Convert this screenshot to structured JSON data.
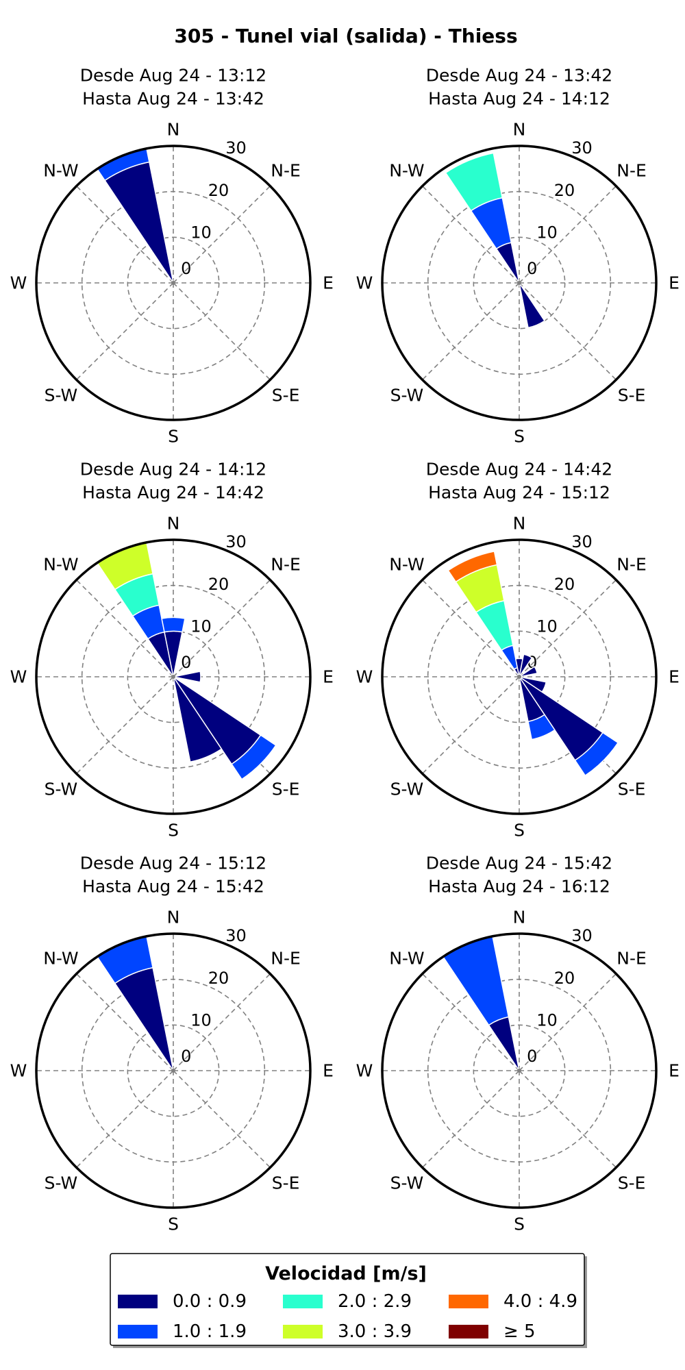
{
  "figure": {
    "title": "305 - Tunel vial (salida) - Thiess"
  },
  "colors": {
    "bins": [
      "#00007f",
      "#0045ff",
      "#29ffce",
      "#ceff29",
      "#ff6800",
      "#7f0000"
    ],
    "grid": "#808080",
    "frame": "#000000"
  },
  "legend": {
    "title": "Velocidad [m/s]",
    "entries": [
      "0.0 : 0.9",
      "1.0 : 1.9",
      "2.0 : 2.9",
      "3.0 : 3.9",
      "4.0 : 4.9",
      "≥ 5"
    ],
    "placement": "bottom-center"
  },
  "chart_data": [
    {
      "type": "windrose",
      "title_line1": "Desde Aug 24 - 13:12",
      "title_line2": "Hasta Aug 24 - 13:42",
      "direction_labels": [
        "N",
        "N-E",
        "E",
        "S-E",
        "S",
        "S-W",
        "W",
        "N-W"
      ],
      "radial_ticks": [
        "0",
        "10",
        "20",
        "30"
      ],
      "rmax": 30,
      "grid": true,
      "sectors": [
        {
          "direction": 337.5,
          "segments": [
            27,
            3
          ]
        }
      ]
    },
    {
      "type": "windrose",
      "title_line1": "Desde Aug 24 - 13:42",
      "title_line2": "Hasta Aug 24 - 14:12",
      "direction_labels": [
        "N",
        "N-E",
        "E",
        "S-E",
        "S",
        "S-W",
        "W",
        "N-W"
      ],
      "radial_ticks": [
        "0",
        "10",
        "20",
        "30"
      ],
      "rmax": 30,
      "grid": true,
      "sectors": [
        {
          "direction": 337.5,
          "segments": [
            9,
            10,
            10
          ]
        },
        {
          "direction": 157.5,
          "segments": [
            10
          ]
        }
      ]
    },
    {
      "type": "windrose",
      "title_line1": "Desde Aug 24 - 14:12",
      "title_line2": "Hasta Aug 24 - 14:42",
      "direction_labels": [
        "N",
        "N-E",
        "E",
        "S-E",
        "S",
        "S-W",
        "W",
        "N-W"
      ],
      "radial_ticks": [
        "0",
        "10",
        "20",
        "30"
      ],
      "rmax": 30,
      "grid": true,
      "sectors": [
        {
          "direction": 337.5,
          "segments": [
            10,
            6,
            7,
            7
          ]
        },
        {
          "direction": 0,
          "segments": [
            10,
            3
          ]
        },
        {
          "direction": 90,
          "segments": [
            6
          ]
        },
        {
          "direction": 135,
          "segments": [
            23,
            4
          ]
        },
        {
          "direction": 157.5,
          "segments": [
            19
          ]
        }
      ]
    },
    {
      "type": "windrose",
      "title_line1": "Desde Aug 24 - 14:42",
      "title_line2": "Hasta Aug 24 - 15:12",
      "direction_labels": [
        "N",
        "N-E",
        "E",
        "S-E",
        "S",
        "S-W",
        "W",
        "N-W"
      ],
      "radial_ticks": [
        "0",
        "10",
        "20",
        "30"
      ],
      "rmax": 30,
      "grid": true,
      "sectors": [
        {
          "direction": 337.5,
          "segments": [
            2,
            5,
            10,
            8,
            3
          ]
        },
        {
          "direction": 0,
          "segments": [
            4
          ]
        },
        {
          "direction": 22.5,
          "segments": [
            5
          ]
        },
        {
          "direction": 67.5,
          "segments": [
            4
          ]
        },
        {
          "direction": 112.5,
          "segments": [
            6
          ]
        },
        {
          "direction": 135,
          "segments": [
            22,
            4
          ]
        },
        {
          "direction": 157.5,
          "segments": [
            10,
            4
          ]
        }
      ]
    },
    {
      "type": "windrose",
      "title_line1": "Desde Aug 24 - 15:12",
      "title_line2": "Hasta Aug 24 - 15:42",
      "direction_labels": [
        "N",
        "N-E",
        "E",
        "S-E",
        "S",
        "S-W",
        "W",
        "N-W"
      ],
      "radial_ticks": [
        "0",
        "10",
        "20",
        "30"
      ],
      "rmax": 30,
      "grid": true,
      "sectors": [
        {
          "direction": 337.5,
          "segments": [
            23,
            7
          ]
        }
      ]
    },
    {
      "type": "windrose",
      "title_line1": "Desde Aug 24 - 15:42",
      "title_line2": "Hasta Aug 24 - 16:12",
      "direction_labels": [
        "N",
        "N-E",
        "E",
        "S-E",
        "S",
        "S-W",
        "W",
        "N-W"
      ],
      "radial_ticks": [
        "0",
        "10",
        "20",
        "30"
      ],
      "rmax": 30,
      "grid": true,
      "sectors": [
        {
          "direction": 337.5,
          "segments": [
            12,
            18
          ]
        }
      ]
    }
  ]
}
